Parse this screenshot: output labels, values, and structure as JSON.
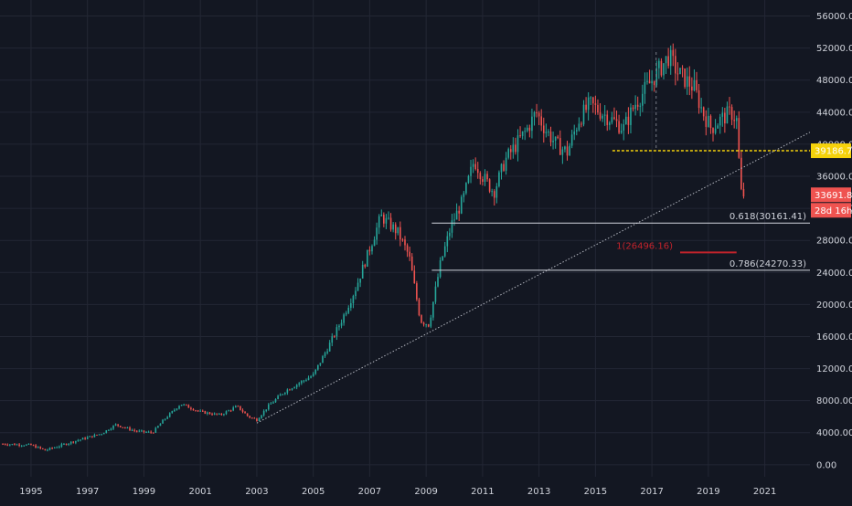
{
  "chart_data": {
    "type": "candlestick",
    "y_axis": {
      "ticks": [
        "56000.00",
        "52000.00",
        "48000.00",
        "44000.00",
        "40000.00",
        "36000.00",
        "32000.00",
        "28000.00",
        "24000.00",
        "20000.00",
        "16000.00",
        "12000.00",
        "8000.00",
        "4000.00",
        "0.00"
      ],
      "min": -1500,
      "max": 58000
    },
    "x_axis": {
      "ticks": [
        "1995",
        "1997",
        "1999",
        "2001",
        "2003",
        "2005",
        "2007",
        "2009",
        "2011",
        "2013",
        "2015",
        "2017",
        "2019",
        "2021"
      ],
      "start_year": 1993.9,
      "end_year": 2022.6
    },
    "colors": {
      "background": "#131722",
      "grid": "#232734",
      "up": "#26a69a",
      "down": "#ef5350",
      "fib_line": "#d1d4dc",
      "fib_1": "#c2232b",
      "support": "#f5d20b",
      "trendline": "#b2b5be"
    },
    "price_path": [
      [
        1994.0,
        2600
      ],
      [
        1995.0,
        2450
      ],
      [
        1995.5,
        1800
      ],
      [
        1996.5,
        2900
      ],
      [
        1997.5,
        3900
      ],
      [
        1998.0,
        5000
      ],
      [
        1998.7,
        4200
      ],
      [
        1999.3,
        4000
      ],
      [
        1999.7,
        5600
      ],
      [
        2000.3,
        7600
      ],
      [
        2001.0,
        6600
      ],
      [
        2001.7,
        6200
      ],
      [
        2002.3,
        7300
      ],
      [
        2002.7,
        6000
      ],
      [
        2003.0,
        5600
      ],
      [
        2003.4,
        7300
      ],
      [
        2004.0,
        9200
      ],
      [
        2004.5,
        10200
      ],
      [
        2005.0,
        11200
      ],
      [
        2005.5,
        14500
      ],
      [
        2006.0,
        18000
      ],
      [
        2006.5,
        22000
      ],
      [
        2007.0,
        27000
      ],
      [
        2007.4,
        31000
      ],
      [
        2007.7,
        30000
      ],
      [
        2008.0,
        29000
      ],
      [
        2008.4,
        26000
      ],
      [
        2008.8,
        18000
      ],
      [
        2009.1,
        17500
      ],
      [
        2009.5,
        25000
      ],
      [
        2009.9,
        30000
      ],
      [
        2010.3,
        33000
      ],
      [
        2010.7,
        38000
      ],
      [
        2011.0,
        36000
      ],
      [
        2011.4,
        34000
      ],
      [
        2011.8,
        38000
      ],
      [
        2012.2,
        40000
      ],
      [
        2012.6,
        42000
      ],
      [
        2012.9,
        44000
      ],
      [
        2013.2,
        42000
      ],
      [
        2013.6,
        40000
      ],
      [
        2014.0,
        39000
      ],
      [
        2014.4,
        43000
      ],
      [
        2014.8,
        45000
      ],
      [
        2015.2,
        44000
      ],
      [
        2015.6,
        43000
      ],
      [
        2016.0,
        42000
      ],
      [
        2016.4,
        45000
      ],
      [
        2016.8,
        47000
      ],
      [
        2017.2,
        49000
      ],
      [
        2017.6,
        51000
      ],
      [
        2017.9,
        49000
      ],
      [
        2018.2,
        48000
      ],
      [
        2018.5,
        47000
      ],
      [
        2018.8,
        44000
      ],
      [
        2019.1,
        42000
      ],
      [
        2019.4,
        43000
      ],
      [
        2019.8,
        44000
      ],
      [
        2020.0,
        43000
      ],
      [
        2020.15,
        34000
      ],
      [
        2020.25,
        33691
      ]
    ],
    "annotations": {
      "current_price": "33691.88",
      "countdown": "28d 16h",
      "support_level": {
        "label": "39186.71",
        "value": 39186.71,
        "x_start": 2015.6
      },
      "fib_levels": [
        {
          "label": "0.618(30161.41)",
          "value": 30161.41,
          "x_start": 2009.2
        },
        {
          "label": "1(26496.16)",
          "value": 26496.16,
          "x_start": 2018.0
        },
        {
          "label": "0.786(24270.33)",
          "value": 24270.33,
          "x_start": 2009.2
        }
      ],
      "trendline": {
        "from": [
          2003.0,
          5200
        ],
        "to": [
          2022.6,
          41500
        ]
      }
    }
  }
}
